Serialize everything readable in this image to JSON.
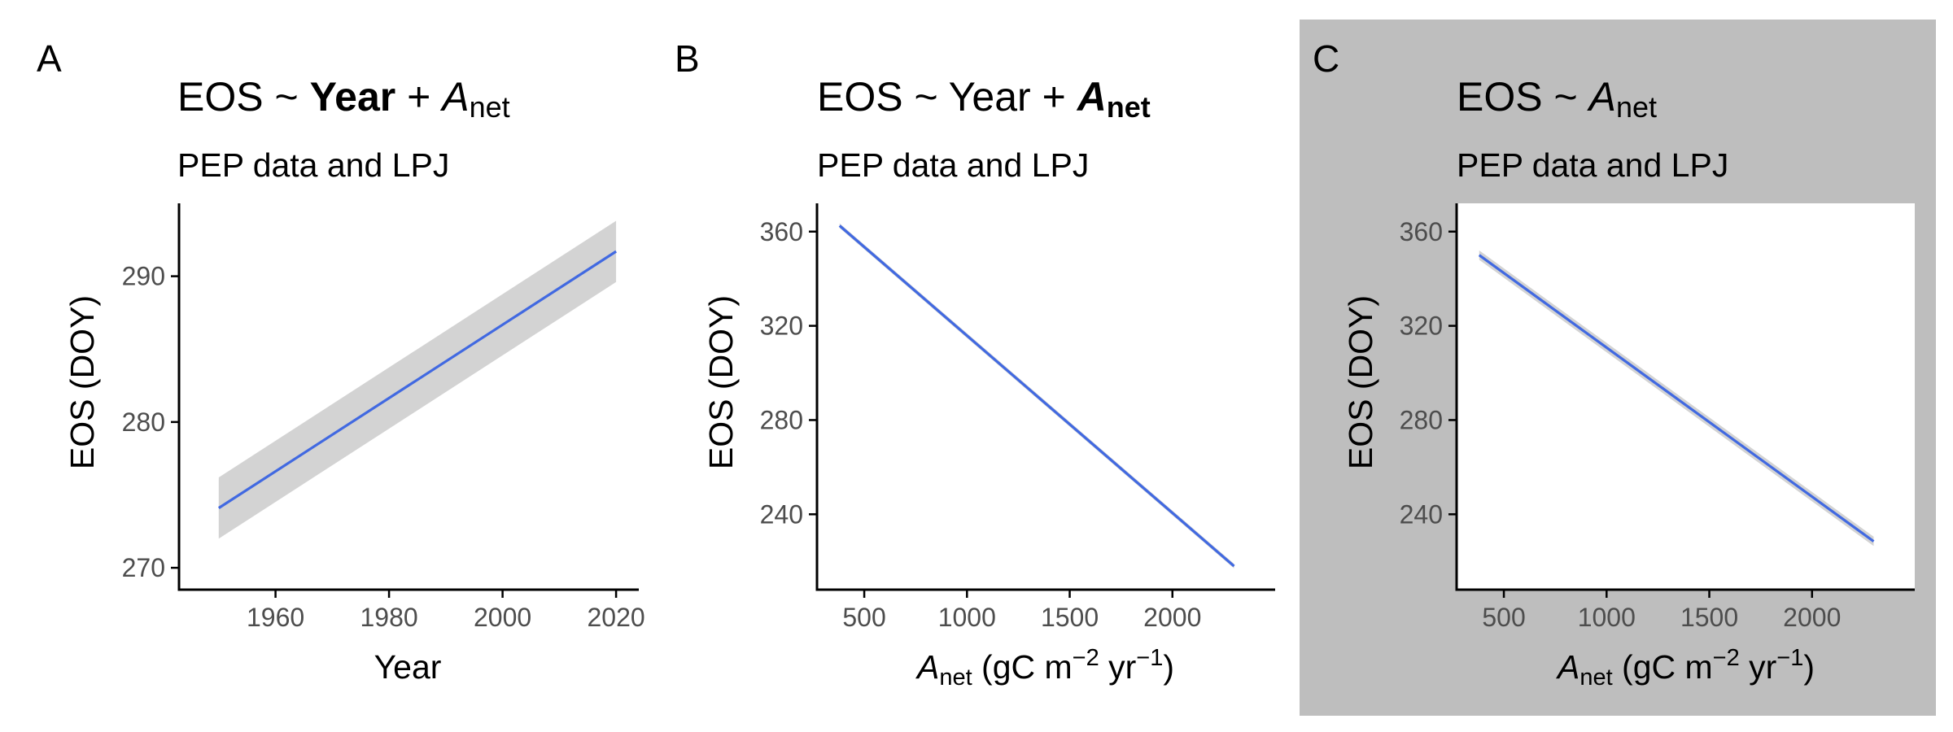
{
  "colors": {
    "line": "#4169e1",
    "ribbon": "#d3d3d3",
    "panel_c_background": "#bebebe",
    "axis": "#000000",
    "tick_label": "#4d4d4d"
  },
  "panels": [
    {
      "tag": "A",
      "title": {
        "prefix": "EOS ~ ",
        "year": "Year",
        "plus": " + ",
        "a": "A",
        "sub": "net",
        "bold_year": true,
        "bold_anet": false,
        "show_year": true
      },
      "subtitle": "PEP data and LPJ",
      "ylabel": "EOS (DOY)",
      "xlabel": "Year",
      "xlabel_rich": false
    },
    {
      "tag": "B",
      "title": {
        "prefix": "EOS ~ ",
        "year": "Year",
        "plus": " + ",
        "a": "A",
        "sub": "net",
        "bold_year": false,
        "bold_anet": true,
        "show_year": true
      },
      "subtitle": "PEP data and LPJ",
      "ylabel": "EOS (DOY)",
      "xlabel": {
        "a": "A",
        "sub": "net",
        "unit_open": " (gC m",
        "exp1": "−2",
        "mid": " yr",
        "exp2": "−1",
        "close": ")"
      },
      "xlabel_rich": true
    },
    {
      "tag": "C",
      "title": {
        "prefix": "EOS ~ ",
        "a": "A",
        "sub": "net",
        "bold_year": false,
        "bold_anet": false,
        "show_year": false
      },
      "subtitle": "PEP data and LPJ",
      "ylabel": "EOS (DOY)",
      "xlabel": {
        "a": "A",
        "sub": "net",
        "unit_open": " (gC m",
        "exp1": "−2",
        "mid": " yr",
        "exp2": "−1",
        "close": ")"
      },
      "xlabel_rich": true,
      "grey_background": true
    }
  ],
  "chart_data": [
    {
      "type": "line",
      "panel": "A",
      "xlim": [
        1943,
        2024
      ],
      "ylim": [
        268.5,
        295
      ],
      "xticks": [
        1960,
        1980,
        2000,
        2020
      ],
      "yticks": [
        270,
        280,
        290
      ],
      "series": [
        {
          "x": [
            1950,
            2020
          ],
          "y": [
            274.1,
            291.7
          ],
          "lower": [
            272.0,
            289.6
          ],
          "upper": [
            276.2,
            293.8
          ]
        }
      ],
      "grid": false
    },
    {
      "type": "line",
      "panel": "B",
      "xlim": [
        270,
        2500
      ],
      "ylim": [
        208,
        372
      ],
      "xticks": [
        500,
        1000,
        1500,
        2000
      ],
      "yticks": [
        240,
        280,
        320,
        360
      ],
      "series": [
        {
          "x": [
            380,
            2300
          ],
          "y": [
            362.5,
            218
          ],
          "lower": [
            361.5,
            217
          ],
          "upper": [
            363.5,
            219
          ]
        }
      ],
      "grid": false
    },
    {
      "type": "line",
      "panel": "C",
      "xlim": [
        270,
        2500
      ],
      "ylim": [
        208,
        372
      ],
      "xticks": [
        500,
        1000,
        1500,
        2000
      ],
      "yticks": [
        240,
        280,
        320,
        360
      ],
      "series": [
        {
          "x": [
            380,
            2300
          ],
          "y": [
            350,
            228.5
          ],
          "lower": [
            348,
            226.5
          ],
          "upper": [
            352,
            230.5
          ]
        }
      ],
      "grid": false
    }
  ]
}
